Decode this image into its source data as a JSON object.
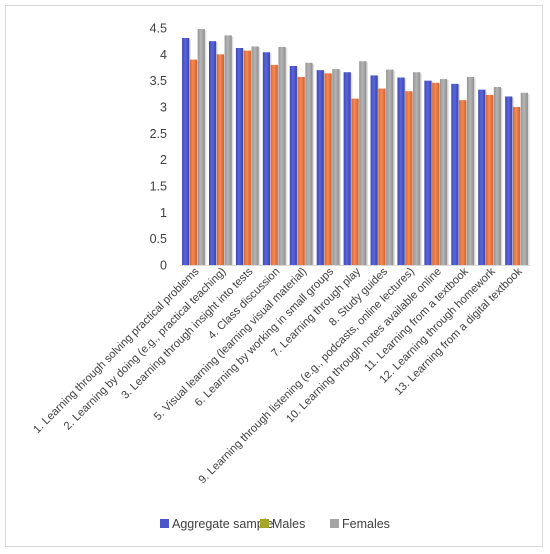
{
  "chart_data": {
    "type": "bar",
    "title": "",
    "xlabel": "",
    "ylabel": "",
    "ylim": [
      0,
      4.5
    ],
    "y_ticks": [
      0,
      0.5,
      1,
      1.5,
      2,
      2.5,
      3,
      3.5,
      4,
      4.5
    ],
    "y_tick_labels": [
      "0",
      "0.5",
      "1",
      "1.5",
      "2",
      "2.5",
      "3",
      "3.5",
      "4",
      "4.5"
    ],
    "grid": false,
    "legend_position": "bottom",
    "categories": [
      "1. Learning through solving practical problems",
      "2. Learning by doing (e.g., practical teaching)",
      "3. Learning through insight into tests",
      "4. Class discussion",
      "5. Visual learning (learning visual material)",
      "6. Learning by working in small groups",
      "7. Learning through play",
      "8. Study guides",
      "9. Learning through listening (e.g., podcasts, online lectures)",
      "10. Learning through notes available online",
      "11. Learning from a textbook",
      "12. Learning through homework",
      "13. Learning from a digital textbook"
    ],
    "series": [
      {
        "name": "Aggregate sample",
        "color": "#4a55c9",
        "values": [
          4.31,
          4.25,
          4.12,
          4.04,
          3.78,
          3.7,
          3.66,
          3.6,
          3.56,
          3.5,
          3.44,
          3.33,
          3.2
        ]
      },
      {
        "name": "Males",
        "color": "#ee7b45",
        "legend_color": "#a5a52a",
        "values": [
          3.9,
          4.0,
          4.07,
          3.8,
          3.57,
          3.64,
          3.16,
          3.35,
          3.3,
          3.46,
          3.13,
          3.23,
          3.0
        ]
      },
      {
        "name": "Females",
        "color": "#a5a5a5",
        "values": [
          4.48,
          4.36,
          4.15,
          4.14,
          3.84,
          3.72,
          3.87,
          3.71,
          3.66,
          3.53,
          3.57,
          3.38,
          3.27
        ]
      }
    ]
  }
}
